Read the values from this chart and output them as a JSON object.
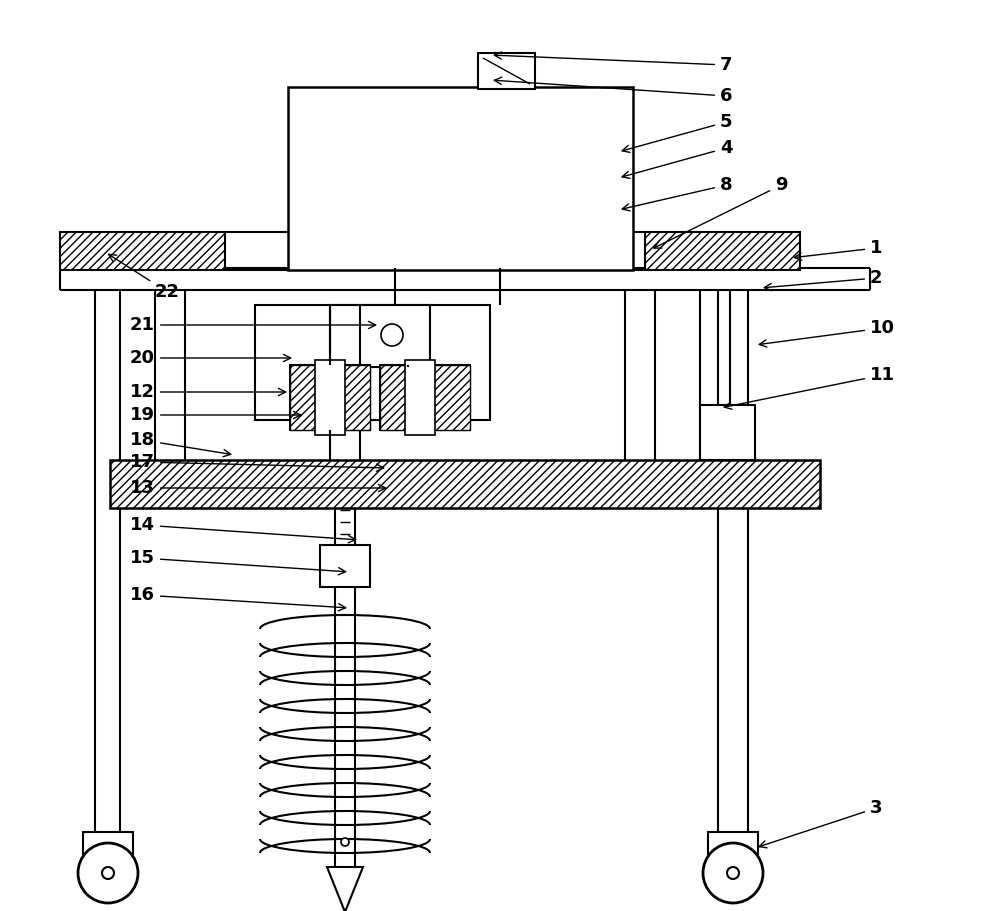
{
  "bg": "#ffffff",
  "lc": "#000000",
  "lw": 1.5,
  "fig_w": 10.0,
  "fig_h": 9.11,
  "annotations": [
    [
      "1",
      870,
      248,
      790,
      258
    ],
    [
      "2",
      870,
      278,
      760,
      288
    ],
    [
      "3",
      870,
      808,
      755,
      848
    ],
    [
      "4",
      720,
      148,
      618,
      178
    ],
    [
      "5",
      720,
      122,
      618,
      152
    ],
    [
      "6",
      720,
      96,
      490,
      80
    ],
    [
      "7",
      720,
      65,
      490,
      55
    ],
    [
      "8",
      720,
      185,
      618,
      210
    ],
    [
      "9",
      775,
      185,
      650,
      250
    ],
    [
      "10",
      870,
      328,
      755,
      345
    ],
    [
      "11",
      870,
      375,
      720,
      408
    ],
    [
      "12",
      155,
      392,
      290,
      392
    ],
    [
      "13",
      155,
      488,
      390,
      488
    ],
    [
      "14",
      155,
      525,
      360,
      540
    ],
    [
      "15",
      155,
      558,
      350,
      572
    ],
    [
      "16",
      155,
      595,
      350,
      608
    ],
    [
      "17",
      155,
      462,
      388,
      468
    ],
    [
      "18",
      155,
      440,
      235,
      455
    ],
    [
      "19",
      155,
      415,
      305,
      415
    ],
    [
      "20",
      155,
      358,
      295,
      358
    ],
    [
      "21",
      155,
      325,
      380,
      325
    ],
    [
      "22",
      155,
      292,
      105,
      252
    ]
  ]
}
